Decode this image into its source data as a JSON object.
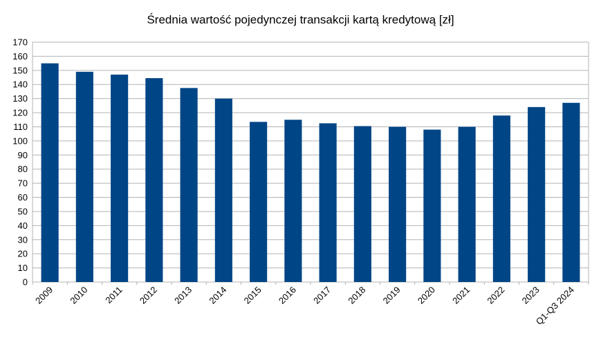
{
  "chart_data": {
    "type": "bar",
    "title": "Średnia wartość pojedynczej transakcji kartą kredytową [zł]",
    "xlabel": "",
    "ylabel": "",
    "categories": [
      "2009",
      "2010",
      "2011",
      "2012",
      "2013",
      "2014",
      "2015",
      "2016",
      "2017",
      "2018",
      "2019",
      "2020",
      "2021",
      "2022",
      "2023",
      "Q1-Q3 2024"
    ],
    "values": [
      155,
      149,
      147,
      144.5,
      137.5,
      130,
      113.5,
      115,
      112.5,
      110.5,
      110,
      108,
      110,
      118,
      124,
      127
    ],
    "ylim": [
      0,
      170
    ],
    "yticks": [
      0,
      10,
      20,
      30,
      40,
      50,
      60,
      70,
      80,
      90,
      100,
      110,
      120,
      130,
      140,
      150,
      160,
      170
    ],
    "grid": true,
    "legend": "none",
    "bar_color": "#004586",
    "grid_color": "#b3b3b3"
  }
}
